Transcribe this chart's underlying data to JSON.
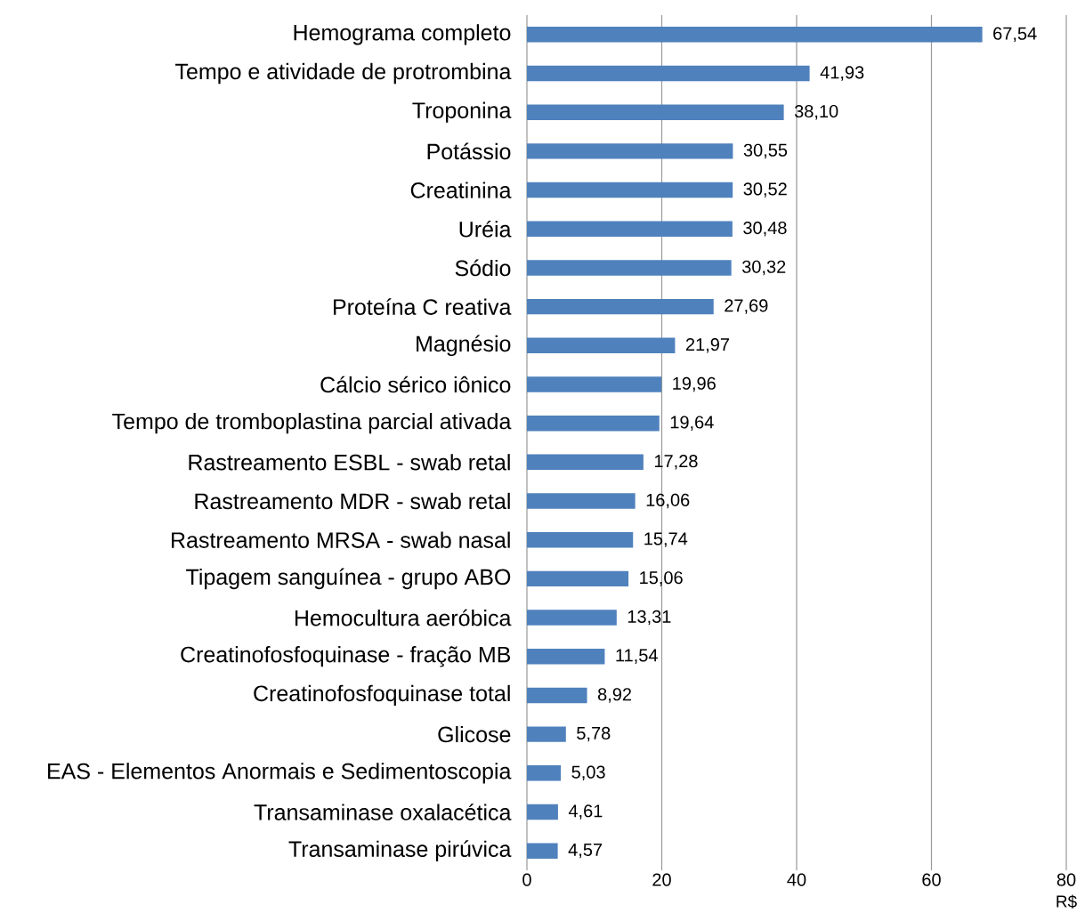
{
  "chart_data": {
    "type": "bar",
    "orientation": "horizontal",
    "xlabel": "R$",
    "categories": [
      "Hemograma completo",
      "Tempo e atividade de protrombina",
      "Troponina",
      "Potássio",
      "Creatinina",
      "Uréia",
      "Sódio",
      "Proteína C reativa",
      "Magnésio",
      "Cálcio sérico iônico",
      "Tempo de tromboplastina parcial ativada",
      "Rastreamento ESBL - swab retal",
      "Rastreamento MDR - swab retal",
      "Rastreamento MRSA - swab nasal",
      "Tipagem sanguínea - grupo ABO",
      "Hemocultura aeróbica",
      "Creatinofosfoquinase - fração MB",
      "Creatinofosfoquinase total",
      "Glicose",
      "EAS - Elementos Anormais e Sedimentoscopia",
      "Transaminase oxalacética",
      "Transaminase pirúvica"
    ],
    "values": [
      67.54,
      41.93,
      38.1,
      30.55,
      30.52,
      30.48,
      30.32,
      27.69,
      21.97,
      19.96,
      19.64,
      17.28,
      16.06,
      15.74,
      15.06,
      13.31,
      11.54,
      8.92,
      5.78,
      5.03,
      4.61,
      4.57
    ],
    "value_labels": [
      "67,54",
      "41,93",
      "38,10",
      "30,55",
      "30,52",
      "30,48",
      "30,32",
      "27,69",
      "21,97",
      "19,96",
      "19,64",
      "17,28",
      "16,06",
      "15,74",
      "15,06",
      "13,31",
      "11,54",
      "8,92",
      "5,78",
      "5,03",
      "4,61",
      "4,57"
    ],
    "color": "#4f81bd",
    "xlim": [
      0,
      80
    ],
    "xticks": [
      0,
      20,
      40,
      60,
      80
    ],
    "grid": "x"
  }
}
